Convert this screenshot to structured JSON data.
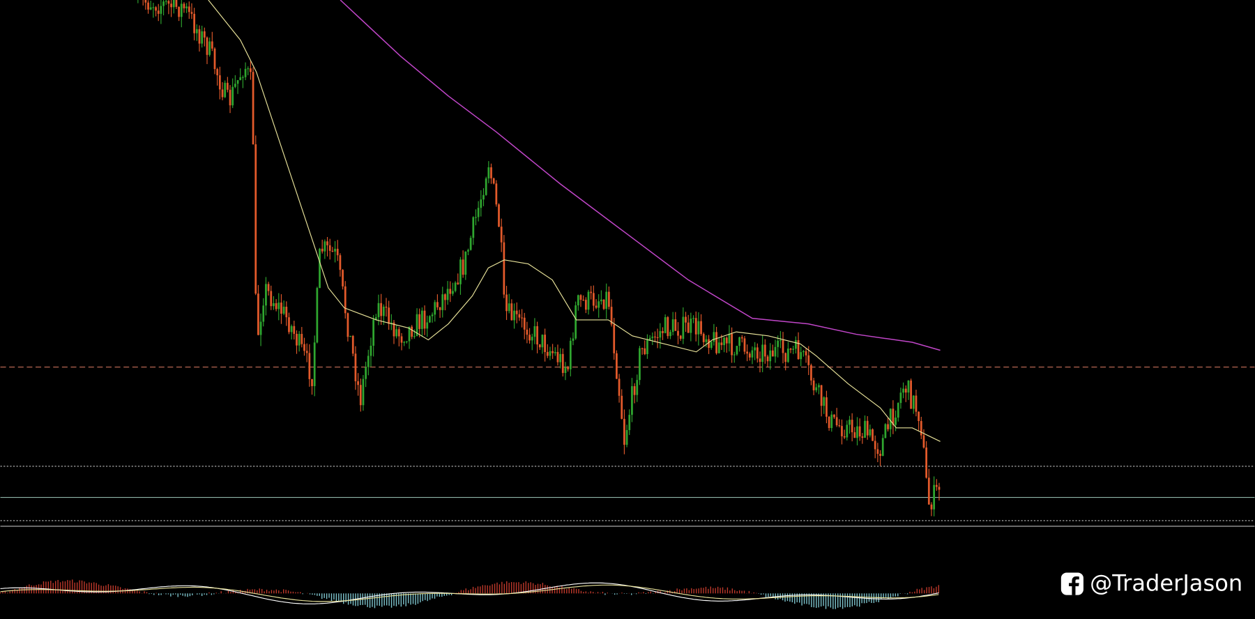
{
  "watermark": {
    "handle": "@TraderJason"
  }
}
